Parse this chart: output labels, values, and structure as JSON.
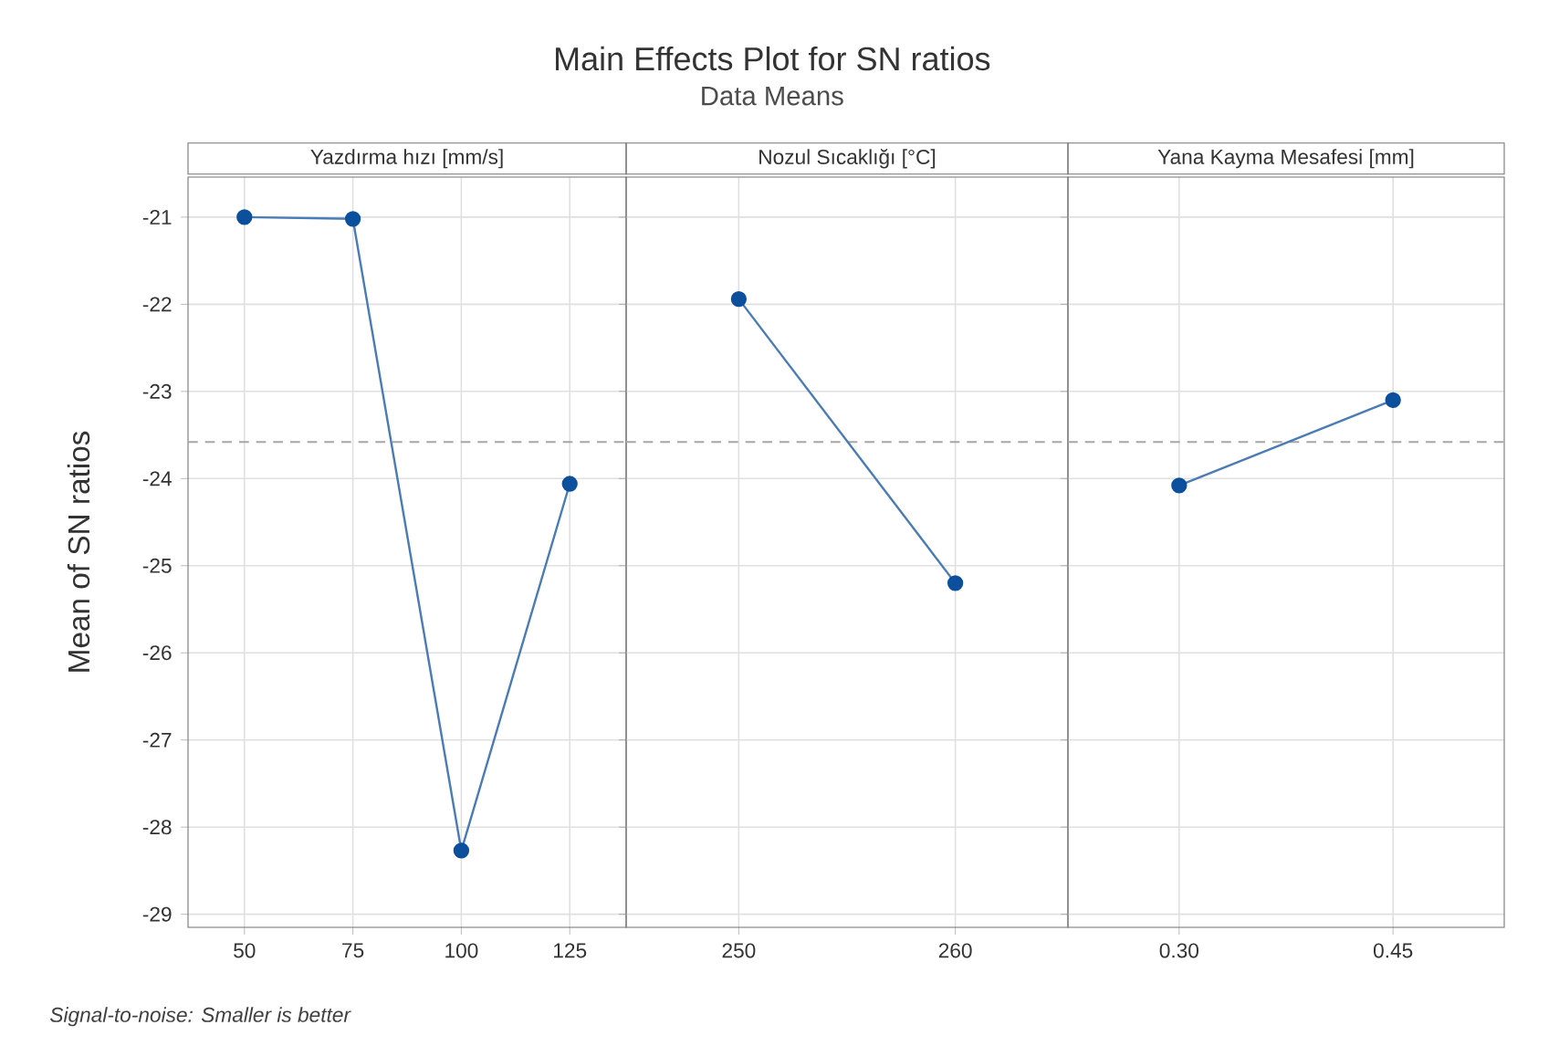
{
  "chart_data": [
    {
      "type": "line",
      "title": "Yazdırma hızı [mm/s]",
      "categories": [
        "50",
        "75",
        "100",
        "125"
      ],
      "values": [
        -21.0,
        -21.02,
        -28.27,
        -24.06
      ],
      "color": "#0c4f9c",
      "marker": "circle",
      "grid": true,
      "ylim": [
        -29.15,
        -20.54
      ],
      "yticks": [
        -29,
        -28,
        -27,
        -26,
        -25,
        -24,
        -23,
        -22,
        -21
      ],
      "ylabel": "Mean of SN ratios",
      "ref_lines": [
        {
          "axis": "y",
          "value": -23.58,
          "color": "#a6a6a6",
          "line_style": "dashed"
        }
      ],
      "annotations": [
        "Main Effects Plot for SN ratios",
        "Data Means",
        "Signal-to-noise: Smaller is better"
      ]
    },
    {
      "type": "line",
      "title": "Nozul Sıcaklığı [°C]",
      "categories": [
        "250",
        "260"
      ],
      "values": [
        -21.94,
        -25.2
      ],
      "color": "#0c4f9c",
      "marker": "circle",
      "grid": true,
      "ylim": [
        -29.15,
        -20.54
      ],
      "yticks": [
        -29,
        -28,
        -27,
        -26,
        -25,
        -24,
        -23,
        -22,
        -21
      ],
      "tick_labels": "x",
      "ref_lines": [
        {
          "axis": "y",
          "value": -23.58,
          "color": "#a6a6a6",
          "line_style": "dashed"
        }
      ]
    },
    {
      "type": "line",
      "title": "Yana Kayma Mesafesi [mm]",
      "categories": [
        "0.30",
        "0.45"
      ],
      "values": [
        -24.08,
        -23.1
      ],
      "color": "#0c4f9c",
      "marker": "circle",
      "grid": true,
      "ylim": [
        -29.15,
        -20.54
      ],
      "yticks": [
        -29,
        -28,
        -27,
        -26,
        -25,
        -24,
        -23,
        -22,
        -21
      ],
      "tick_labels": "x",
      "ref_lines": [
        {
          "axis": "y",
          "value": -23.58,
          "color": "#a6a6a6",
          "line_style": "dashed"
        }
      ]
    }
  ]
}
